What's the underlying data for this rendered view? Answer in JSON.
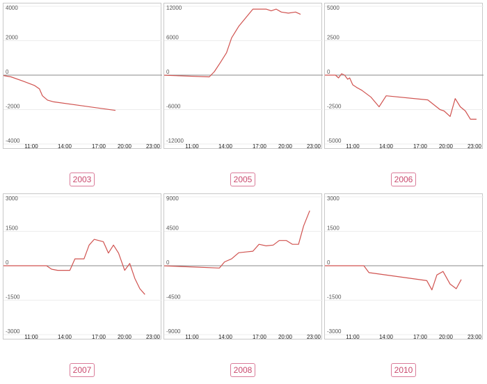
{
  "chart_data": [
    {
      "type": "line",
      "label": "2003",
      "ylim": [
        -4000,
        4000
      ],
      "yticks": [
        4000,
        2000,
        0,
        -2000,
        -4000
      ],
      "xlim": [
        8,
        24
      ],
      "xticks": [
        "11:00",
        "14:00",
        "17:00",
        "20:00",
        "23:00"
      ],
      "xtick_values": [
        11,
        14,
        17,
        20,
        23
      ],
      "color": "#d0524f",
      "x": [
        8.0,
        9.0,
        10.2,
        11.3,
        11.8,
        12.1,
        12.6,
        13.2,
        19.3
      ],
      "y": [
        0,
        -100,
        -350,
        -600,
        -800,
        -1200,
        -1450,
        -1550,
        -2050
      ]
    },
    {
      "type": "line",
      "label": "2005",
      "ylim": [
        -12000,
        12000
      ],
      "yticks": [
        12000,
        6000,
        0,
        -6000,
        -12000
      ],
      "xlim": [
        8,
        24
      ],
      "xticks": [
        "11:00",
        "14:00",
        "17:00",
        "20:00",
        "23:00"
      ],
      "xtick_values": [
        11,
        14,
        17,
        20,
        23
      ],
      "color": "#d0524f",
      "x": [
        8.0,
        12.7,
        13.2,
        13.8,
        14.4,
        14.9,
        15.6,
        16.3,
        17.0,
        18.3,
        18.8,
        19.3,
        19.8,
        20.5,
        21.2,
        21.7
      ],
      "y": [
        0,
        -300,
        600,
        2200,
        3900,
        6500,
        8500,
        10000,
        11500,
        11500,
        11200,
        11500,
        11000,
        10800,
        11000,
        10600
      ]
    },
    {
      "type": "line",
      "label": "2006",
      "ylim": [
        -5000,
        5000
      ],
      "yticks": [
        5000,
        2500,
        0,
        -2500,
        -5000
      ],
      "xlim": [
        8,
        24
      ],
      "xticks": [
        "11:00",
        "14:00",
        "17:00",
        "20:00",
        "23:00"
      ],
      "xtick_values": [
        11,
        14,
        17,
        20,
        23
      ],
      "color": "#d0524f",
      "x": [
        8.0,
        9.3,
        9.6,
        9.9,
        10.2,
        10.5,
        10.7,
        11.0,
        11.4,
        11.9,
        12.8,
        13.6,
        14.3,
        18.4,
        19.6,
        20.0,
        20.6,
        21.1,
        21.6,
        22.1,
        22.6,
        23.2
      ],
      "y": [
        0,
        0,
        -200,
        100,
        0,
        -300,
        -200,
        -700,
        -900,
        -1100,
        -1600,
        -2300,
        -1500,
        -1800,
        -2500,
        -2600,
        -3000,
        -1700,
        -2300,
        -2600,
        -3200,
        -3200
      ]
    },
    {
      "type": "line",
      "label": "2007",
      "ylim": [
        -3000,
        3000
      ],
      "yticks": [
        3000,
        1500,
        0,
        -1500,
        -3000
      ],
      "xlim": [
        8,
        24
      ],
      "xticks": [
        "11:00",
        "14:00",
        "17:00",
        "20:00",
        "23:00"
      ],
      "xtick_values": [
        11,
        14,
        17,
        20,
        23
      ],
      "color": "#d0524f",
      "x": [
        8.0,
        12.5,
        13.0,
        13.6,
        14.8,
        15.3,
        16.2,
        16.7,
        17.2,
        18.1,
        18.6,
        19.1,
        19.6,
        20.2,
        20.7,
        21.2,
        21.7,
        22.2
      ],
      "y": [
        0,
        0,
        -150,
        -200,
        -200,
        300,
        300,
        900,
        1150,
        1050,
        550,
        900,
        550,
        -200,
        100,
        -550,
        -1000,
        -1250
      ]
    },
    {
      "type": "line",
      "label": "2008",
      "ylim": [
        -9000,
        9000
      ],
      "yticks": [
        9000,
        4500,
        0,
        -4500,
        -9000
      ],
      "xlim": [
        8,
        24
      ],
      "xticks": [
        "11:00",
        "14:00",
        "17:00",
        "20:00",
        "23:00"
      ],
      "xtick_values": [
        11,
        14,
        17,
        20,
        23
      ],
      "color": "#d0524f",
      "x": [
        8.0,
        13.7,
        14.2,
        14.9,
        15.6,
        16.3,
        17.0,
        17.6,
        18.3,
        19.0,
        19.6,
        20.3,
        20.9,
        21.5,
        22.0,
        22.6
      ],
      "y": [
        0,
        -300,
        500,
        900,
        1700,
        1800,
        1900,
        2800,
        2600,
        2700,
        3300,
        3300,
        2800,
        2800,
        5200,
        7200
      ]
    },
    {
      "type": "line",
      "label": "2010",
      "ylim": [
        -3000,
        3000
      ],
      "yticks": [
        3000,
        1500,
        0,
        -1500,
        -3000
      ],
      "xlim": [
        8,
        24
      ],
      "xticks": [
        "11:00",
        "14:00",
        "17:00",
        "20:00",
        "23:00"
      ],
      "xtick_values": [
        11,
        14,
        17,
        20,
        23
      ],
      "color": "#d0524f",
      "x": [
        8.0,
        12.1,
        12.6,
        18.3,
        18.8,
        19.3,
        19.9,
        20.6,
        21.2,
        21.7
      ],
      "y": [
        0,
        0,
        -300,
        -650,
        -1050,
        -400,
        -250,
        -800,
        -1000,
        -600
      ]
    }
  ]
}
